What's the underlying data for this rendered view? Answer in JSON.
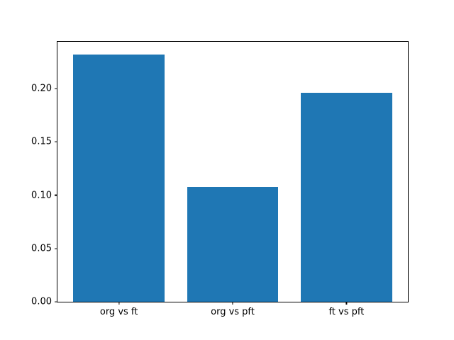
{
  "chart_data": {
    "type": "bar",
    "title": "",
    "xlabel": "",
    "ylabel": "",
    "categories": [
      "org vs ft",
      "org vs pft",
      "ft vs pft"
    ],
    "values": [
      0.232,
      0.108,
      0.196
    ],
    "ylim": [
      0,
      0.244
    ],
    "yticks": [
      0,
      0.05,
      0.1,
      0.15,
      0.2
    ],
    "ytick_labels": [
      "0.00",
      "0.05",
      "0.10",
      "0.15",
      "0.20"
    ],
    "bar_color": "#1f77b4",
    "axes_color": "#000000",
    "background": "#ffffff",
    "grid": false,
    "legend": null,
    "bar_width": 0.8
  }
}
